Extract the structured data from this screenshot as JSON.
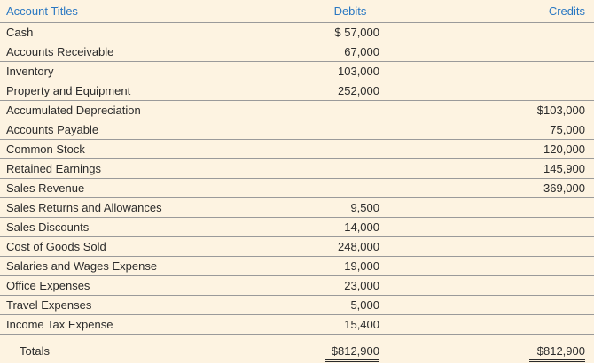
{
  "headers": {
    "title": "Account Titles",
    "debits": "Debits",
    "credits": "Credits"
  },
  "rows": [
    {
      "title": "Cash",
      "debit": "$ 57,000",
      "credit": ""
    },
    {
      "title": "Accounts Receivable",
      "debit": "67,000",
      "credit": ""
    },
    {
      "title": "Inventory",
      "debit": "103,000",
      "credit": ""
    },
    {
      "title": "Property and Equipment",
      "debit": "252,000",
      "credit": ""
    },
    {
      "title": "Accumulated Depreciation",
      "debit": "",
      "credit": "$103,000"
    },
    {
      "title": "Accounts Payable",
      "debit": "",
      "credit": "75,000"
    },
    {
      "title": "Common Stock",
      "debit": "",
      "credit": "120,000"
    },
    {
      "title": "Retained Earnings",
      "debit": "",
      "credit": "145,900"
    },
    {
      "title": "Sales Revenue",
      "debit": "",
      "credit": "369,000"
    },
    {
      "title": "Sales Returns and Allowances",
      "debit": "9,500",
      "credit": ""
    },
    {
      "title": "Sales Discounts",
      "debit": "14,000",
      "credit": ""
    },
    {
      "title": "Cost of Goods Sold",
      "debit": "248,000",
      "credit": ""
    },
    {
      "title": "Salaries and Wages Expense",
      "debit": "19,000",
      "credit": ""
    },
    {
      "title": "Office Expenses",
      "debit": "23,000",
      "credit": ""
    },
    {
      "title": "Travel Expenses",
      "debit": "5,000",
      "credit": ""
    },
    {
      "title": "Income Tax Expense",
      "debit": "15,400",
      "credit": ""
    }
  ],
  "totals": {
    "label": "Totals",
    "debit": "$812,900",
    "credit": "$812,900"
  }
}
